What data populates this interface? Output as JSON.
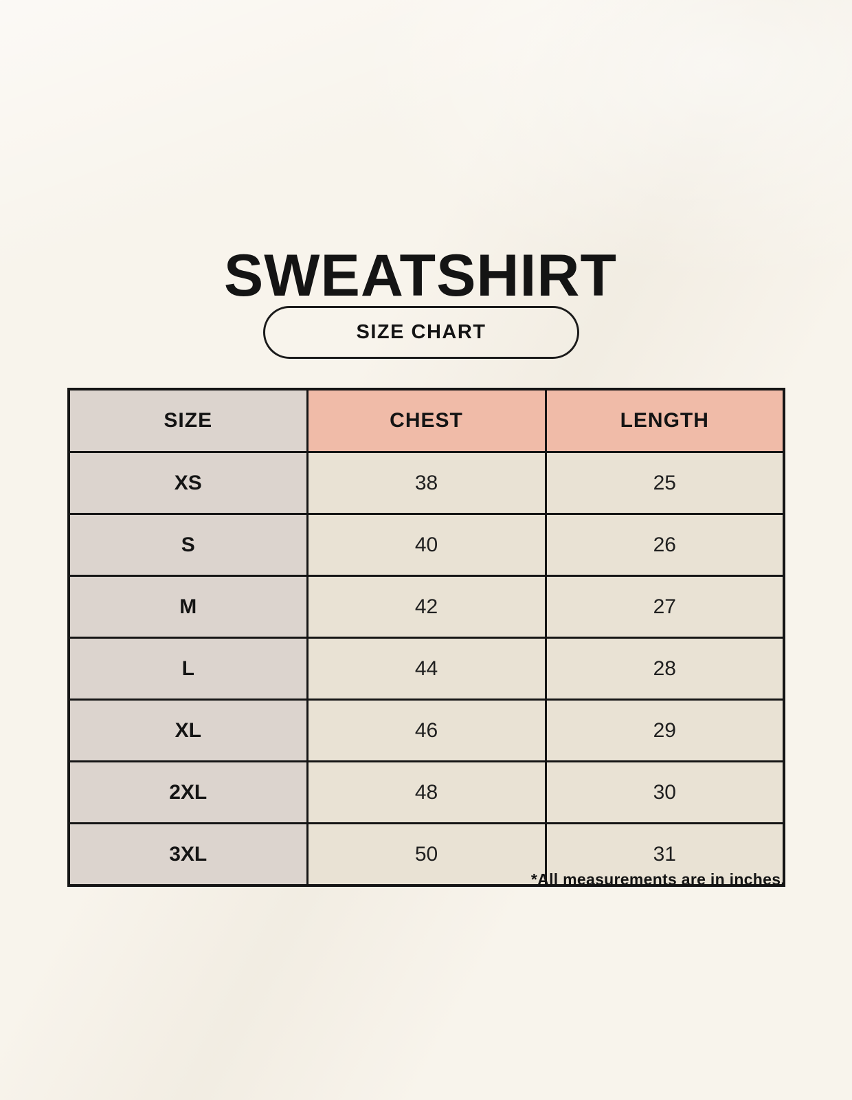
{
  "page": {
    "title": "SWEATSHIRT",
    "badge_label": "SIZE CHART",
    "footnote": "*All measurements are in inches."
  },
  "chart_data": {
    "type": "table",
    "title": "SWEATSHIRT",
    "subtitle": "SIZE CHART",
    "columns": [
      "SIZE",
      "CHEST",
      "LENGTH"
    ],
    "rows": [
      {
        "size": "XS",
        "chest": "38",
        "length": "25"
      },
      {
        "size": "S",
        "chest": "40",
        "length": "26"
      },
      {
        "size": "M",
        "chest": "42",
        "length": "27"
      },
      {
        "size": "L",
        "chest": "44",
        "length": "28"
      },
      {
        "size": "XL",
        "chest": "46",
        "length": "29"
      },
      {
        "size": "2XL",
        "chest": "48",
        "length": "30"
      },
      {
        "size": "3XL",
        "chest": "50",
        "length": "31"
      }
    ],
    "units_note": "*All measurements are in inches.",
    "layout": {
      "grid": true,
      "header_accent_columns": [
        "CHEST",
        "LENGTH"
      ]
    }
  },
  "colors": {
    "background": "#f8f4ec",
    "size_column_bg": "#dcd4ce",
    "header_accent_bg": "#f0bba8",
    "value_cell_bg": "#e9e2d4",
    "border": "#151515",
    "text": "#141414"
  }
}
